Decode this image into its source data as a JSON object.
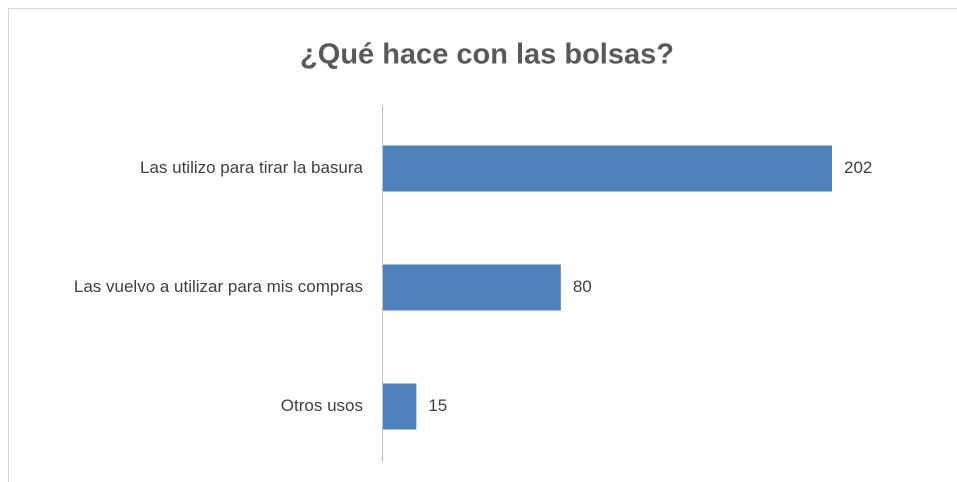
{
  "chart_data": {
    "type": "hbar",
    "title": "¿Qué hace con las bolsas?",
    "categories": [
      "Las utilizo para tirar la basura",
      "Las vuelvo a utilizar para mis compras",
      "Otros usos"
    ],
    "values": [
      202,
      80,
      15
    ],
    "color": "#4f81bd"
  }
}
